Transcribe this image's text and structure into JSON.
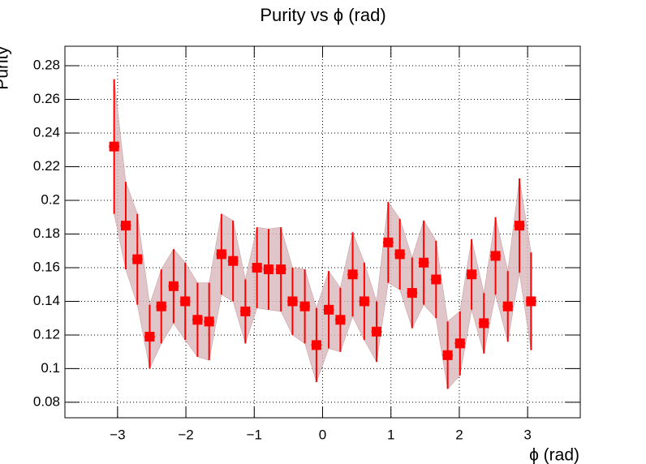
{
  "chart_data": {
    "type": "errorbar",
    "title": "Purity vs ϕ (rad)",
    "x_label": "ϕ (rad)",
    "y_label": "Purity",
    "x": [
      -3.05,
      -2.88,
      -2.71,
      -2.53,
      -2.36,
      -2.18,
      -2.01,
      -1.83,
      -1.66,
      -1.48,
      -1.31,
      -1.13,
      -0.96,
      -0.79,
      -0.61,
      -0.44,
      -0.26,
      -0.09,
      0.09,
      0.26,
      0.44,
      0.61,
      0.79,
      0.96,
      1.13,
      1.31,
      1.48,
      1.66,
      1.83,
      2.01,
      2.18,
      2.36,
      2.53,
      2.71,
      2.88,
      3.05
    ],
    "series": [
      {
        "color": "#ff0000",
        "band_color": "#d9b8bc",
        "values": [
          0.232,
          0.185,
          0.165,
          0.119,
          0.137,
          0.149,
          0.14,
          0.129,
          0.128,
          0.168,
          0.164,
          0.134,
          0.16,
          0.159,
          0.159,
          0.14,
          0.137,
          0.114,
          0.135,
          0.129,
          0.156,
          0.14,
          0.122,
          0.175,
          0.168,
          0.145,
          0.163,
          0.153,
          0.108,
          0.115,
          0.156,
          0.127,
          0.167,
          0.137,
          0.185,
          0.14
        ],
        "errors": [
          0.04,
          0.026,
          0.027,
          0.019,
          0.022,
          0.022,
          0.023,
          0.022,
          0.023,
          0.024,
          0.024,
          0.019,
          0.024,
          0.024,
          0.025,
          0.02,
          0.022,
          0.022,
          0.023,
          0.019,
          0.025,
          0.023,
          0.018,
          0.024,
          0.021,
          0.021,
          0.025,
          0.023,
          0.02,
          0.019,
          0.021,
          0.018,
          0.023,
          0.021,
          0.028,
          0.029
        ]
      }
    ],
    "xlim": [
      -3.77,
      3.77
    ],
    "ylim": [
      0.0708,
      0.2916
    ],
    "xticks": [
      {
        "value": -3,
        "label": "−3"
      },
      {
        "value": -2,
        "label": "−2"
      },
      {
        "value": -1,
        "label": "−1"
      },
      0,
      1,
      2,
      3
    ],
    "yticks": [
      0.08,
      0.1,
      0.12,
      0.14,
      0.16,
      0.18,
      0.2,
      0.22,
      0.24,
      0.26,
      0.28
    ],
    "grid": true
  }
}
